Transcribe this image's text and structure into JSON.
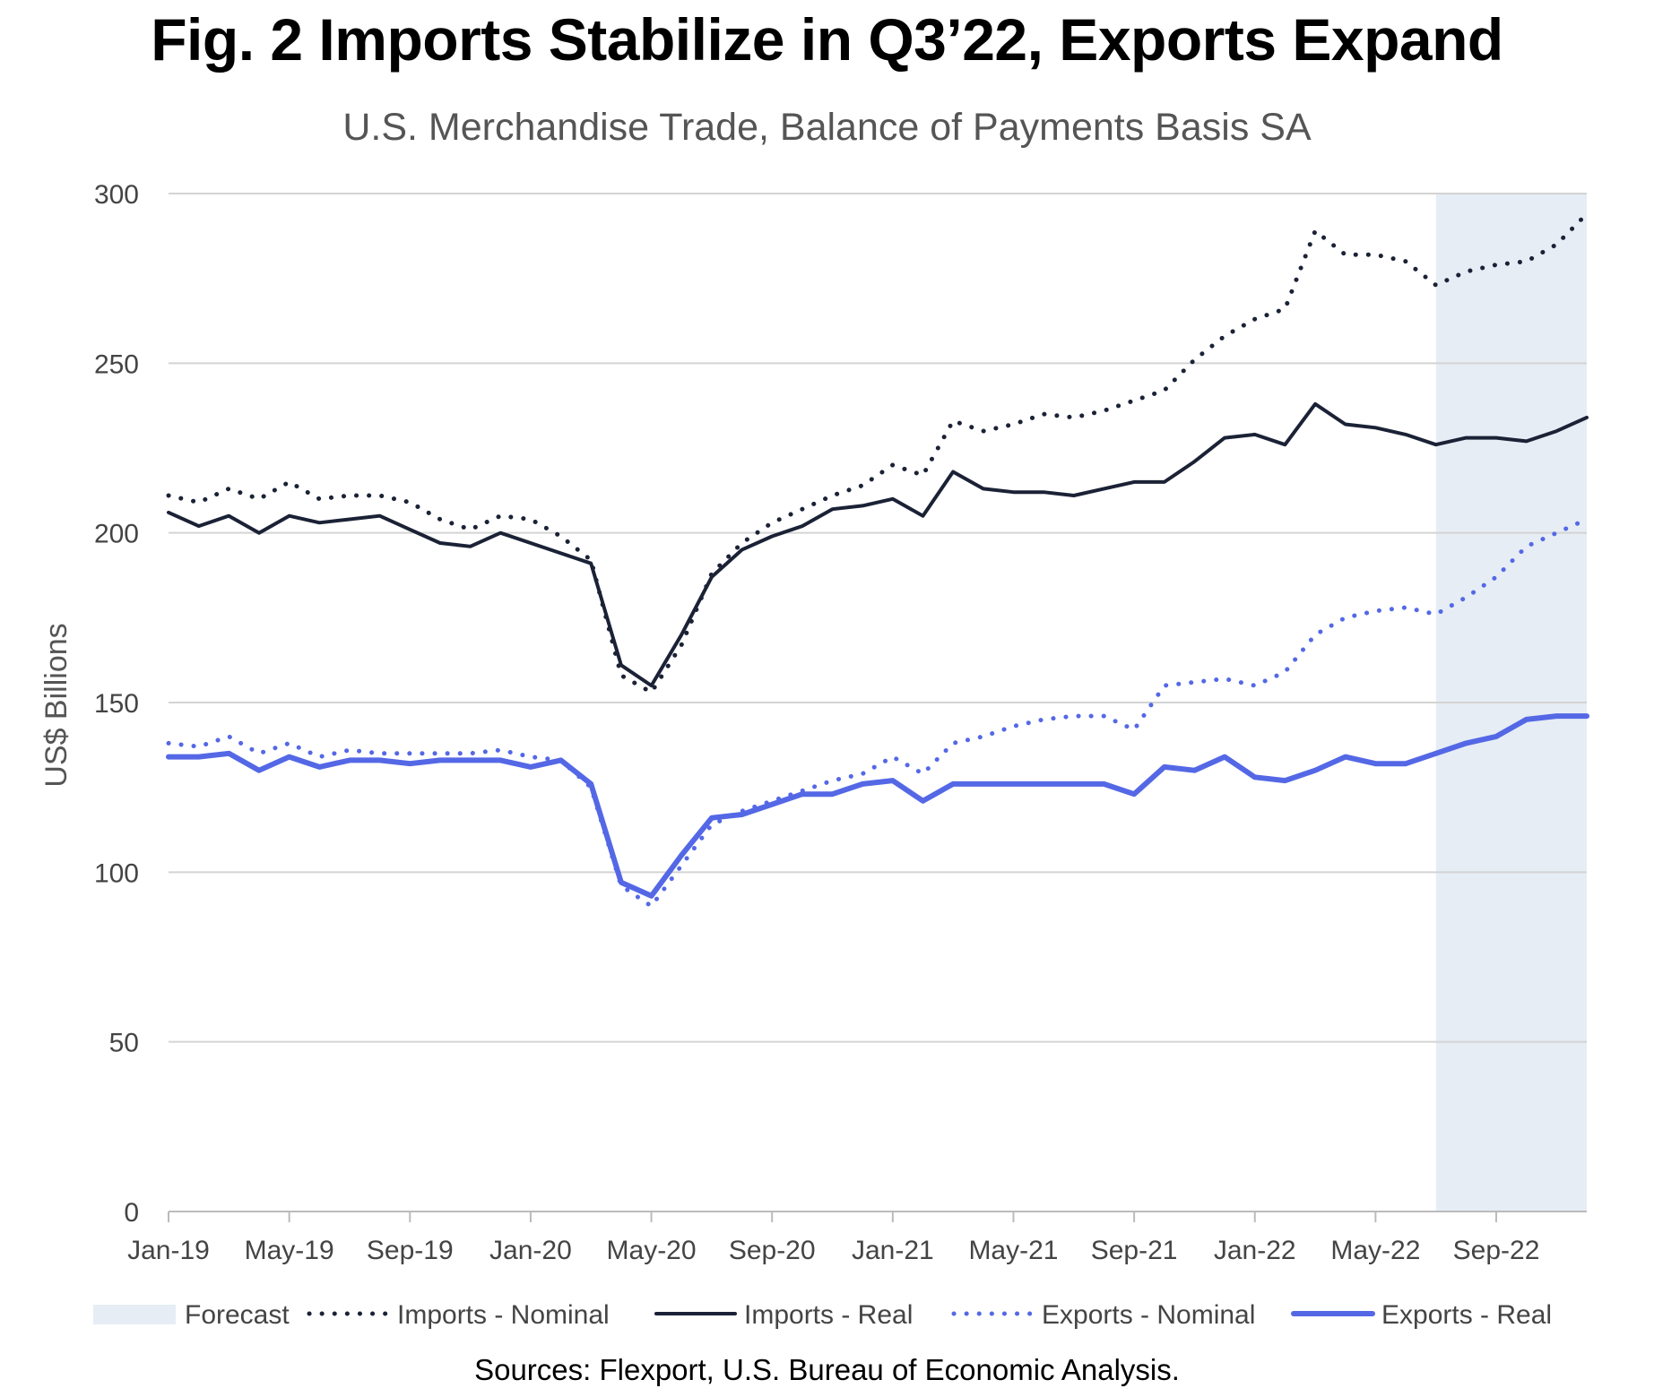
{
  "title": "Fig. 2 Imports Stabilize in Q3’22, Exports Expand",
  "subtitle": "U.S. Merchandise Trade, Balance of Payments Basis SA",
  "source": "Sources: Flexport, U.S. Bureau of Economic Analysis.",
  "colors": {
    "imports": "#1b2236",
    "exports": "#5468e6",
    "forecast": "#e6edf5",
    "grid": "#d4d4d4",
    "axis_text": "#444444"
  },
  "chart_data": {
    "type": "line",
    "title": "Fig. 2 Imports Stabilize in Q3’22, Exports Expand",
    "subtitle": "U.S. Merchandise Trade, Balance of Payments Basis SA",
    "ylabel": "US$ Billions",
    "xlabel": "",
    "ylim": [
      0,
      300
    ],
    "yticks": [
      0,
      50,
      100,
      150,
      200,
      250,
      300
    ],
    "xticks": [
      "Jan-19",
      "May-19",
      "Sep-19",
      "Jan-20",
      "May-20",
      "Sep-20",
      "Jan-21",
      "May-21",
      "Sep-21",
      "Jan-22",
      "May-22",
      "Sep-22"
    ],
    "x": [
      "Jan-19",
      "Feb-19",
      "Mar-19",
      "Apr-19",
      "May-19",
      "Jun-19",
      "Jul-19",
      "Aug-19",
      "Sep-19",
      "Oct-19",
      "Nov-19",
      "Dec-19",
      "Jan-20",
      "Feb-20",
      "Mar-20",
      "Apr-20",
      "May-20",
      "Jun-20",
      "Jul-20",
      "Aug-20",
      "Sep-20",
      "Oct-20",
      "Nov-20",
      "Dec-20",
      "Jan-21",
      "Feb-21",
      "Mar-21",
      "Apr-21",
      "May-21",
      "Jun-21",
      "Jul-21",
      "Aug-21",
      "Sep-21",
      "Oct-21",
      "Nov-21",
      "Dec-21",
      "Jan-22",
      "Feb-22",
      "Mar-22",
      "Apr-22",
      "May-22",
      "Jun-22",
      "Jul-22",
      "Aug-22",
      "Sep-22",
      "Oct-22",
      "Nov-22",
      "Dec-22"
    ],
    "forecast_start": "Jul-22",
    "legend": [
      "Forecast",
      "Imports - Nominal",
      "Imports - Real",
      "Exports - Nominal",
      "Exports - Real"
    ],
    "legend_position": "bottom",
    "series": [
      {
        "name": "Imports - Nominal",
        "style": "dotted",
        "color_key": "imports",
        "values": [
          211,
          209,
          213,
          210,
          215,
          210,
          211,
          211,
          209,
          204,
          201,
          205,
          204,
          199,
          192,
          158,
          153,
          167,
          188,
          197,
          203,
          207,
          211,
          214,
          220,
          217,
          233,
          230,
          232,
          235,
          234,
          236,
          239,
          242,
          251,
          258,
          263,
          266,
          289,
          282,
          282,
          280,
          273,
          277,
          279,
          280,
          285,
          294
        ]
      },
      {
        "name": "Imports - Real",
        "style": "solid",
        "color_key": "imports",
        "values": [
          206,
          202,
          205,
          200,
          205,
          203,
          204,
          205,
          201,
          197,
          196,
          200,
          197,
          194,
          191,
          161,
          155,
          170,
          187,
          195,
          199,
          202,
          207,
          208,
          210,
          205,
          218,
          213,
          212,
          212,
          211,
          213,
          215,
          215,
          221,
          228,
          229,
          226,
          238,
          232,
          231,
          229,
          226,
          228,
          228,
          227,
          230,
          234
        ]
      },
      {
        "name": "Exports - Nominal",
        "style": "dotted",
        "color_key": "exports",
        "values": [
          138,
          137,
          140,
          135,
          138,
          134,
          136,
          135,
          135,
          135,
          135,
          136,
          134,
          133,
          125,
          96,
          90,
          102,
          114,
          118,
          121,
          124,
          127,
          129,
          134,
          129,
          138,
          140,
          143,
          145,
          146,
          146,
          142,
          155,
          156,
          157,
          155,
          159,
          170,
          175,
          177,
          178,
          176,
          181,
          187,
          196,
          200,
          204
        ]
      },
      {
        "name": "Exports - Real",
        "style": "solid",
        "color_key": "exports",
        "values": [
          134,
          134,
          135,
          130,
          134,
          131,
          133,
          133,
          132,
          133,
          133,
          133,
          131,
          133,
          126,
          97,
          93,
          105,
          116,
          117,
          120,
          123,
          123,
          126,
          127,
          121,
          126,
          126,
          126,
          126,
          126,
          126,
          123,
          131,
          130,
          134,
          128,
          127,
          130,
          134,
          132,
          132,
          135,
          138,
          140,
          145,
          146,
          146
        ]
      }
    ]
  }
}
